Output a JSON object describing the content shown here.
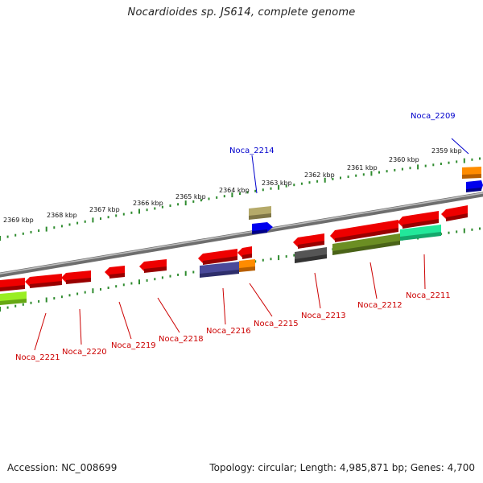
{
  "title": "Nocardioides sp. JS614, complete genome",
  "footer": {
    "accession": "Accession: NC_008699",
    "summary": "Topology: circular; Length: 4,985,871 bp; Genes: 4,700"
  },
  "colors": {
    "backbone": "#8a8a8a",
    "tick": "#2e8b2e",
    "forward_label": "#0000cc",
    "reverse_label": "#cc0000"
  },
  "kbp_ticks": [
    "2359 kbp",
    "2360 kbp",
    "2361 kbp",
    "2362 kbp",
    "2363 kbp",
    "2364 kbp",
    "2365 kbp",
    "2366 kbp",
    "2367 kbp",
    "2368 kbp",
    "2369 kbp"
  ],
  "labels": {
    "forward": [
      "Noca_2209",
      "Noca_2214"
    ],
    "reverse": [
      "Noca_2211",
      "Noca_2212",
      "Noca_2213",
      "Noca_2215",
      "Noca_2216",
      "Noca_2218",
      "Noca_2219",
      "Noca_2220",
      "Noca_2221"
    ]
  },
  "gene_colors": {
    "forward_orange": "#ff8c00",
    "forward_blue": "#0000ee",
    "forward_khaki": "#b5aa6a",
    "reverse_red": "#ee0000",
    "reverse_gray": "#555555",
    "reverse_olive": "#6b8e23",
    "reverse_aquamarine": "#22e89a",
    "reverse_slate": "#4a4a9a",
    "reverse_orange": "#ff8c00",
    "reverse_lime": "#99ee22"
  }
}
